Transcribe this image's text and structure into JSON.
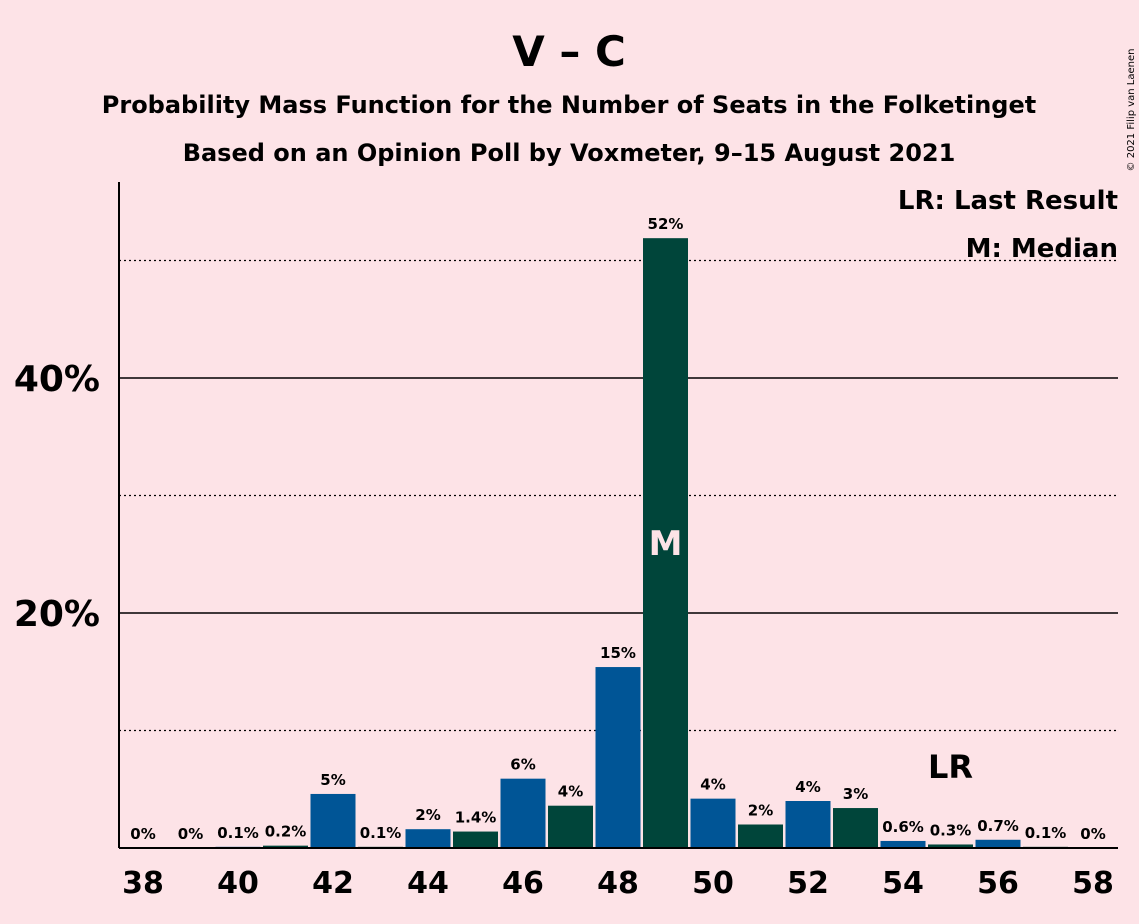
{
  "title": "V – C",
  "subtitle_1": "Probability Mass Function for the Number of Seats in the Folketinget",
  "subtitle_2": "Based on an Opinion Poll by Voxmeter, 9–15 August 2021",
  "credit": "© 2021 Filip van Laenen",
  "legend": {
    "last_result": "LR: Last Result",
    "median": "M: Median"
  },
  "markers": {
    "median_label": "M",
    "median_seat": 49,
    "last_result_label": "LR",
    "last_result_seat": 55
  },
  "colors": {
    "background": "#fde3e7",
    "bar_primary": "#005596",
    "bar_secondary": "#00453a"
  },
  "chart_data": {
    "type": "bar",
    "x": [
      38,
      39,
      40,
      41,
      42,
      43,
      44,
      45,
      46,
      47,
      48,
      49,
      50,
      51,
      52,
      53,
      54,
      55,
      56,
      57,
      58
    ],
    "values": [
      0,
      0,
      0.1,
      0.2,
      4.6,
      0.1,
      1.6,
      1.4,
      5.9,
      3.6,
      15.4,
      51.9,
      4.2,
      2.0,
      4.0,
      3.4,
      0.6,
      0.3,
      0.7,
      0.1,
      0
    ],
    "value_labels": [
      "0%",
      "0%",
      "0.1%",
      "0.2%",
      "5%",
      "0.1%",
      "2%",
      "1.4%",
      "6%",
      "4%",
      "15%",
      "52%",
      "4%",
      "2%",
      "4%",
      "3%",
      "0.6%",
      "0.3%",
      "0.7%",
      "0.1%",
      "0%"
    ],
    "xtick_labels": [
      "38",
      "40",
      "42",
      "44",
      "46",
      "48",
      "50",
      "52",
      "54",
      "56",
      "58"
    ],
    "ytick_labels": [
      "20%",
      "40%"
    ],
    "ylim": [
      0,
      56
    ],
    "gridlines_major": [
      20,
      40
    ],
    "gridlines_minor": [
      10,
      30,
      50
    ],
    "grid": true,
    "legend_position": "top-right"
  }
}
